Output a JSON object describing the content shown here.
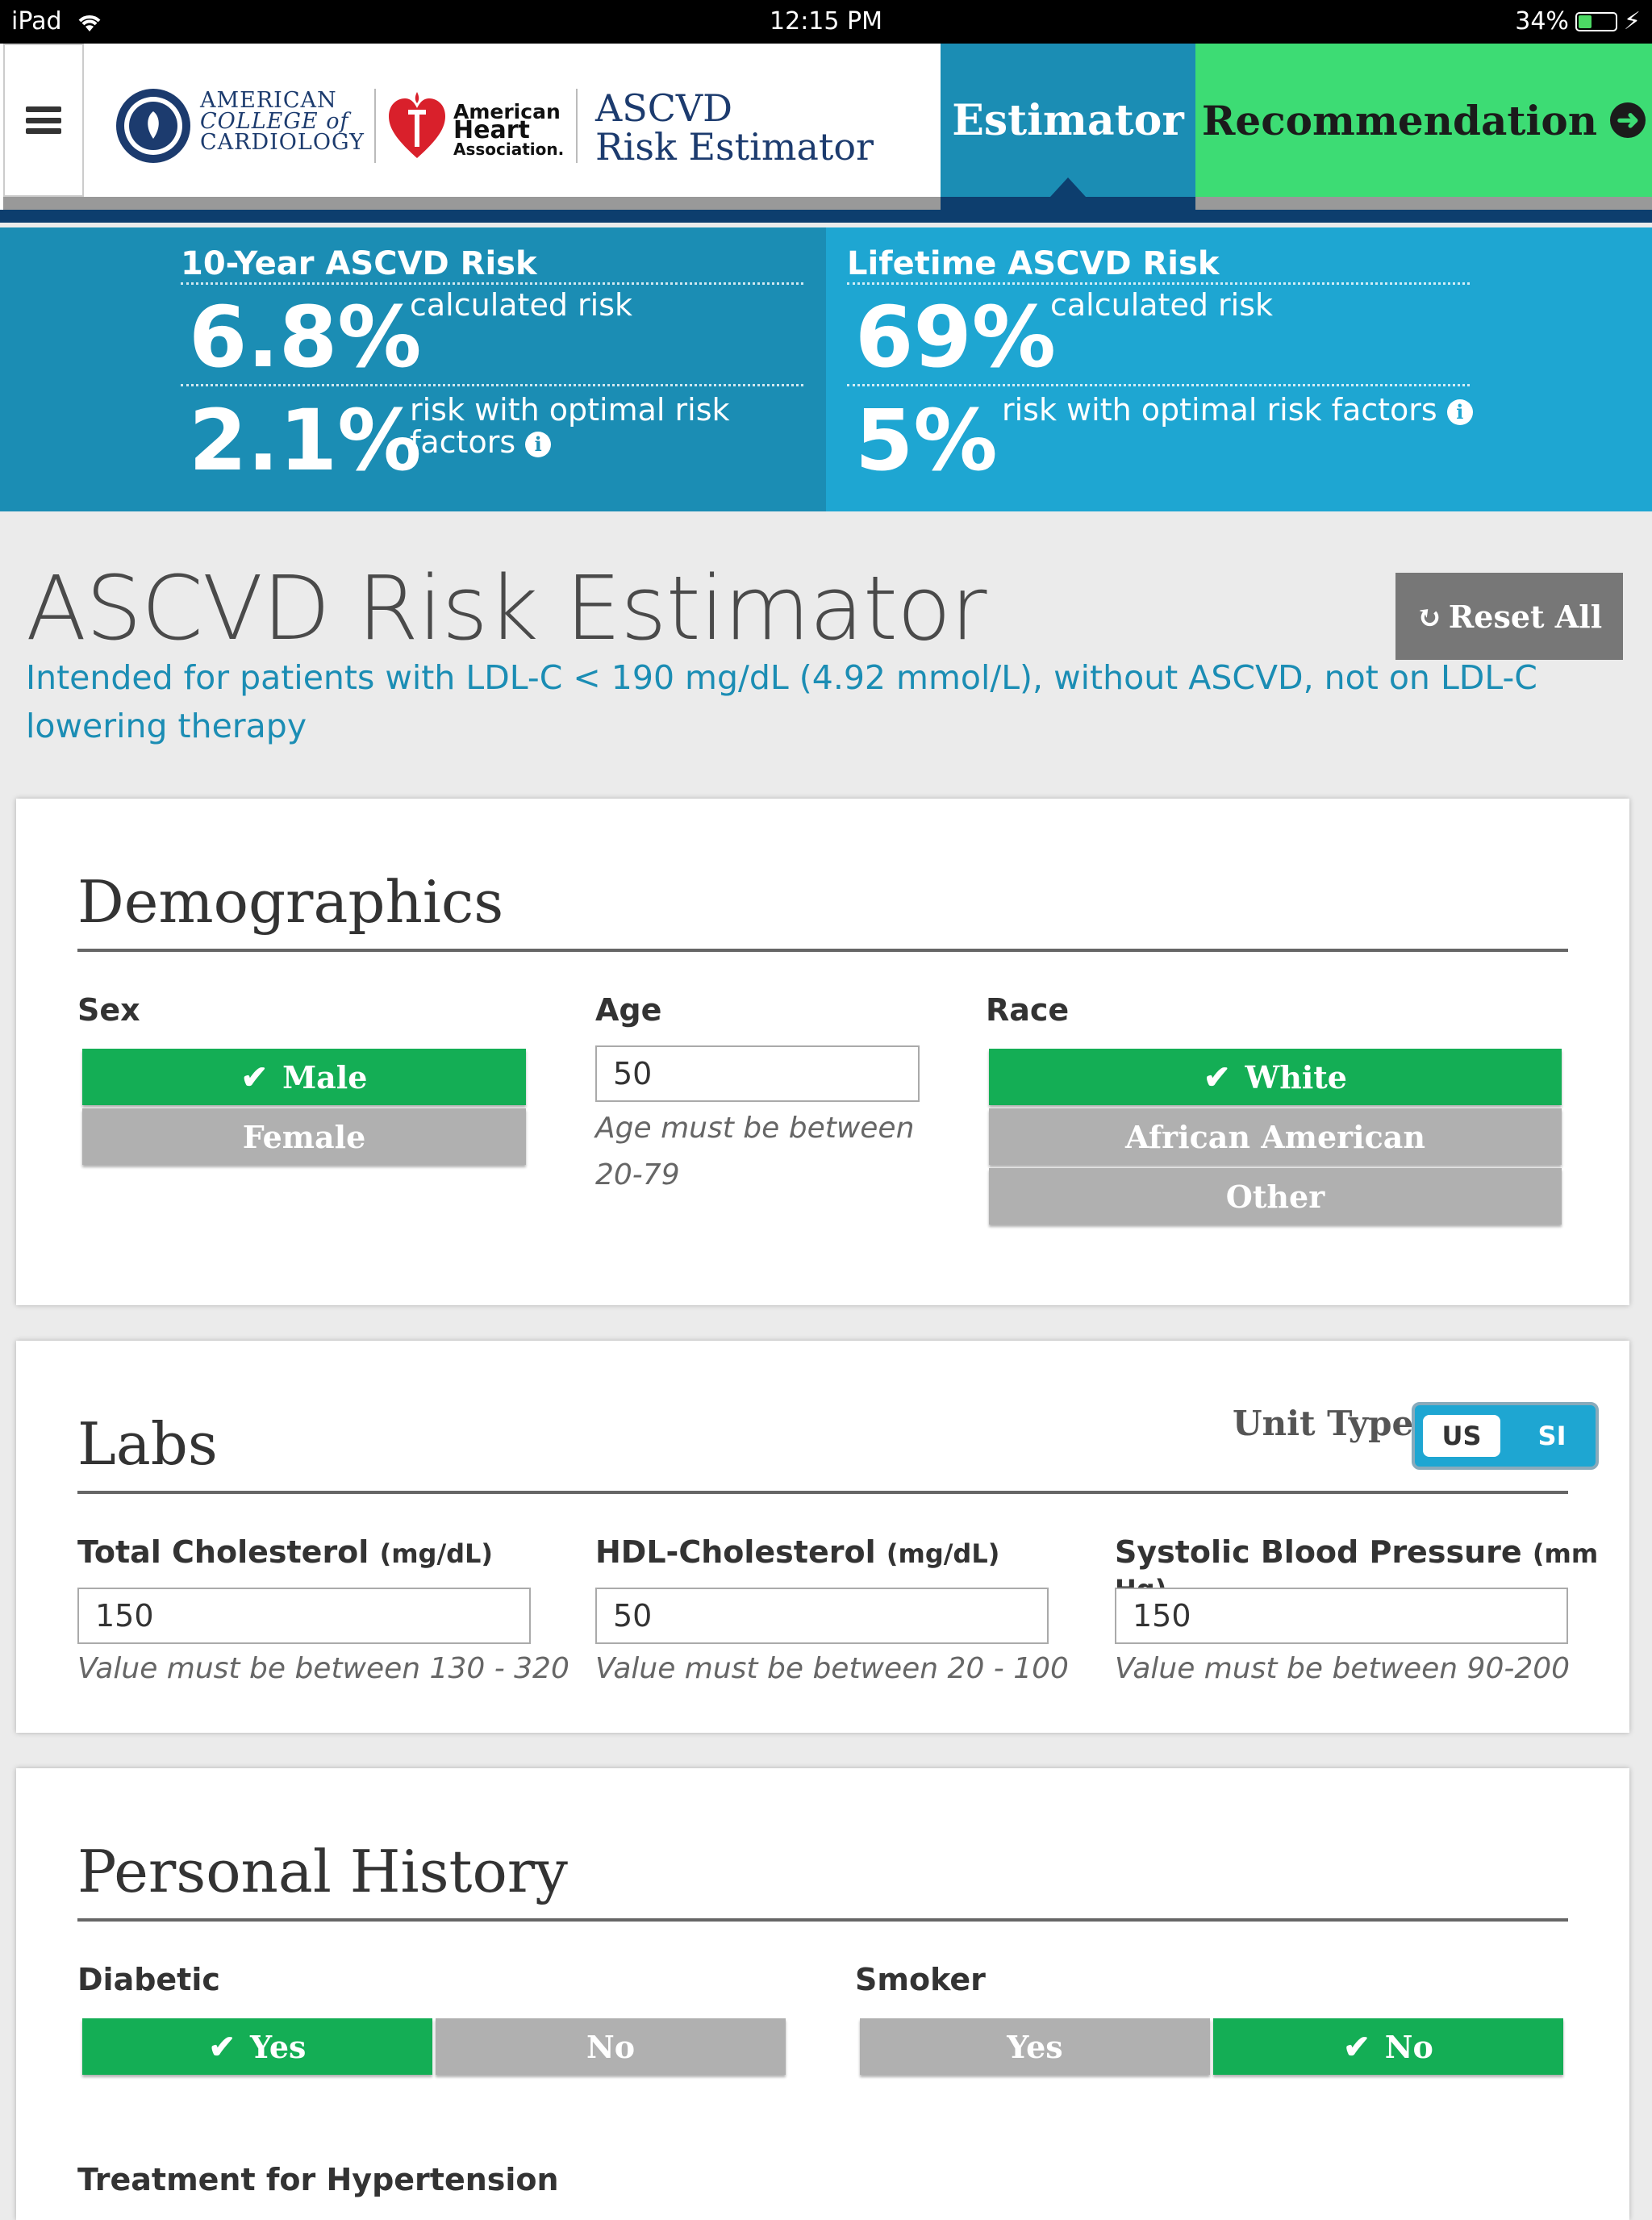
{
  "status_bar": {
    "device": "iPad",
    "time": "12:15 PM",
    "battery": "34%"
  },
  "header": {
    "acc_logo_text": [
      "AMERICAN",
      "COLLEGE of",
      "CARDIOLOGY"
    ],
    "aha_logo_text": [
      "American",
      "Heart",
      "Association."
    ],
    "app_title": [
      "ASCVD",
      "Risk Estimator"
    ],
    "tab_estimator": "Estimator",
    "tab_recommendation": "Recommendation"
  },
  "risk": {
    "ten_year": {
      "title": "10-Year ASCVD Risk",
      "value": "6.8%",
      "value_label": "calculated risk",
      "optimal": "2.1%",
      "optimal_label": "risk with optimal risk factors"
    },
    "lifetime": {
      "title": "Lifetime ASCVD Risk",
      "value": "69%",
      "value_label": "calculated risk",
      "optimal": "5%",
      "optimal_label": "risk with optimal risk factors"
    }
  },
  "page": {
    "title": "ASCVD Risk Estimator",
    "reset_label": "Reset All",
    "subtitle": "Intended for patients with LDL-C < 190 mg/dL (4.92 mmol/L), without ASCVD, not on LDL-C lowering therapy"
  },
  "demographics": {
    "heading": "Demographics",
    "sex_label": "Sex",
    "sex_options": [
      "Male",
      "Female"
    ],
    "sex_selected": "Male",
    "age_label": "Age",
    "age_value": "50",
    "age_hint": "Age must be between 20-79",
    "race_label": "Race",
    "race_options": [
      "White",
      "African American",
      "Other"
    ],
    "race_selected": "White"
  },
  "labs": {
    "heading": "Labs",
    "unit_type_label": "Unit Type",
    "unit_options": [
      "US",
      "SI"
    ],
    "unit_selected": "US",
    "total_chol": {
      "label": "Total Cholesterol",
      "unit": "(mg/dL)",
      "value": "150",
      "hint": "Value must be between 130 - 320"
    },
    "hdl_chol": {
      "label": "HDL-Cholesterol",
      "unit": "(mg/dL)",
      "value": "50",
      "hint": "Value must be between 20 - 100"
    },
    "sbp": {
      "label": "Systolic Blood Pressure",
      "unit": "(mm Hg)",
      "value": "150",
      "hint": "Value must be between 90-200"
    }
  },
  "history": {
    "heading": "Personal History",
    "diabetic_label": "Diabetic",
    "diabetic_options": [
      "Yes",
      "No"
    ],
    "diabetic_selected": "Yes",
    "smoker_label": "Smoker",
    "smoker_options": [
      "Yes",
      "No"
    ],
    "smoker_selected": "No",
    "treatment_label": "Treatment for Hypertension"
  },
  "colors": {
    "estimator_tab": "#1b8db4",
    "recommendation_tab": "#3ddc74",
    "selected": "#14ae55",
    "unselected": "#b0b0b0",
    "lifetime_panel": "#1ea6d2"
  }
}
